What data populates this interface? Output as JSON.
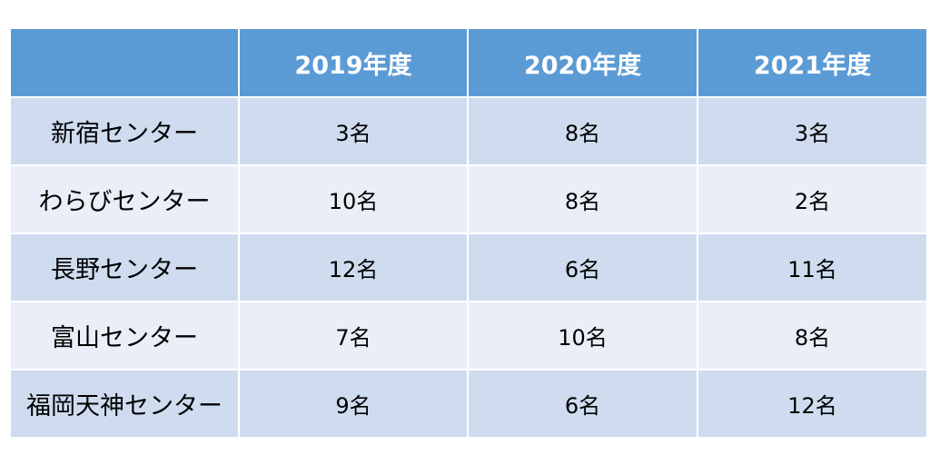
{
  "table": {
    "headers": [
      "",
      "2019年度",
      "2020年度",
      "2021年度"
    ],
    "rows": [
      {
        "label": "新宿センター",
        "values": [
          "3名",
          "8名",
          "3名"
        ]
      },
      {
        "label": "わらびセンター",
        "values": [
          "10名",
          "8名",
          "2名"
        ]
      },
      {
        "label": "長野センター",
        "values": [
          "12名",
          "6名",
          "11名"
        ]
      },
      {
        "label": "富山センター",
        "values": [
          "7名",
          "10名",
          "8名"
        ]
      },
      {
        "label": "福岡天神センター",
        "values": [
          "9名",
          "6名",
          "12名"
        ]
      }
    ]
  },
  "colors": {
    "header_bg": "#5b9bd5",
    "row_odd_bg": "#cfdcef",
    "row_even_bg": "#e9eef7"
  }
}
